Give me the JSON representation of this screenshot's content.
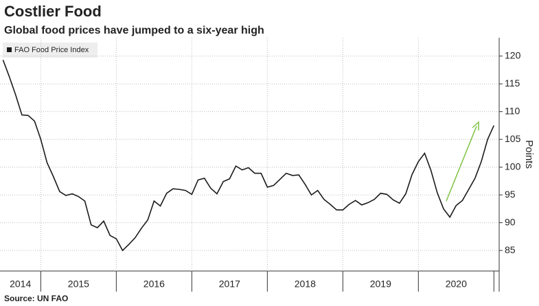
{
  "chart_data": {
    "type": "line",
    "title": "Costlier Food",
    "subtitle": "Global food prices have jumped to a six-year high",
    "source": "Source: UN FAO",
    "ylabel": "Points",
    "x": [
      2014.5,
      2014.583,
      2014.667,
      2014.75,
      2014.833,
      2014.917,
      2015,
      2015.083,
      2015.167,
      2015.25,
      2015.333,
      2015.417,
      2015.5,
      2015.583,
      2015.667,
      2015.75,
      2015.833,
      2015.917,
      2016,
      2016.083,
      2016.167,
      2016.25,
      2016.333,
      2016.417,
      2016.5,
      2016.583,
      2016.667,
      2016.75,
      2016.833,
      2016.917,
      2017,
      2017.083,
      2017.167,
      2017.25,
      2017.333,
      2017.417,
      2017.5,
      2017.583,
      2017.667,
      2017.75,
      2017.833,
      2017.917,
      2018,
      2018.083,
      2018.167,
      2018.25,
      2018.333,
      2018.417,
      2018.5,
      2018.583,
      2018.667,
      2018.75,
      2018.833,
      2018.917,
      2019,
      2019.083,
      2019.167,
      2019.25,
      2019.333,
      2019.417,
      2019.5,
      2019.583,
      2019.667,
      2019.75,
      2019.833,
      2019.917,
      2020,
      2020.083,
      2020.167,
      2020.25,
      2020.333,
      2020.417,
      2020.5,
      2020.583,
      2020.667,
      2020.75,
      2020.833,
      2020.917,
      2021
    ],
    "series": [
      {
        "name": "FAO Food Price Index",
        "color": "#1a1a1a",
        "values": [
          119.3,
          116.3,
          113.0,
          109.4,
          109.3,
          108.3,
          105.0,
          100.8,
          98.3,
          95.6,
          94.9,
          95.2,
          94.7,
          93.9,
          89.6,
          89.1,
          90.3,
          87.7,
          87.1,
          85.0,
          86.1,
          87.3,
          89.0,
          90.5,
          93.9,
          93.0,
          95.3,
          96.1,
          96.0,
          95.8,
          95.1,
          97.7,
          98.0,
          96.2,
          95.2,
          97.4,
          97.9,
          100.2,
          99.5,
          99.9,
          98.9,
          98.9,
          96.4,
          96.7,
          97.8,
          98.9,
          98.5,
          98.6,
          96.9,
          95.0,
          95.8,
          94.2,
          93.3,
          92.3,
          92.3,
          93.3,
          94.0,
          93.2,
          93.6,
          94.2,
          95.3,
          95.1,
          94.1,
          93.5,
          95.2,
          98.7,
          101.0,
          102.5,
          99.4,
          95.4,
          92.5,
          91.0,
          93.1,
          94.0,
          96.0,
          98.0,
          101.0,
          105.0,
          107.5
        ]
      }
    ],
    "xlim": [
      2014.46,
      2021.07
    ],
    "xticks": [
      2014,
      2015,
      2016,
      2017,
      2018,
      2019,
      2020
    ],
    "ylim": [
      81.3,
      123.3
    ],
    "yticks": [
      85,
      90,
      95,
      100,
      105,
      110,
      115,
      120
    ],
    "grid": true
  }
}
